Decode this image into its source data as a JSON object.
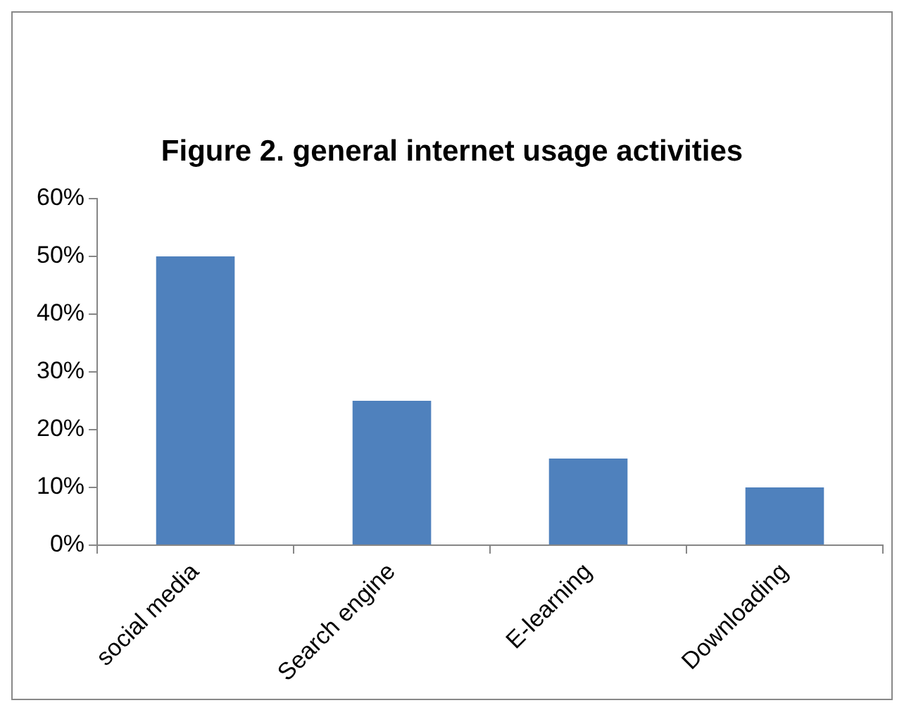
{
  "chart_data": {
    "type": "bar",
    "title": "Figure 2. general internet usage activities",
    "categories": [
      "social media",
      "Search engine",
      "E-learning",
      "Downloading"
    ],
    "values": [
      50,
      25,
      15,
      10
    ],
    "color": "#4f81bd",
    "ylim": [
      0,
      60
    ],
    "yticks": [
      {
        "value": 0,
        "label": "0%"
      },
      {
        "value": 10,
        "label": "10%"
      },
      {
        "value": 20,
        "label": "20%"
      },
      {
        "value": 30,
        "label": "30%"
      },
      {
        "value": 40,
        "label": "40%"
      },
      {
        "value": 50,
        "label": "50%"
      },
      {
        "value": 60,
        "label": "60%"
      }
    ]
  }
}
